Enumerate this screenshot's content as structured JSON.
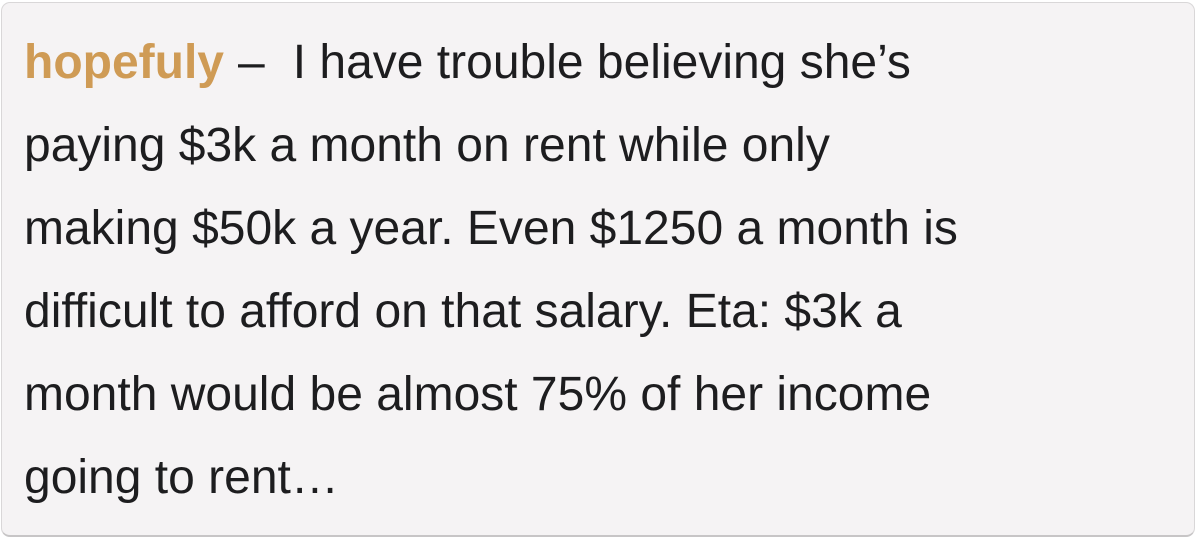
{
  "page": {
    "background_color": "#ffffff"
  },
  "card": {
    "background_color": "#f5f3f4",
    "border_color": "#d9d7d8",
    "accent_color": "#cf9b55",
    "text_color": "#1d1d1f"
  },
  "comment": {
    "username": "hopefuly",
    "separator": "–",
    "body": "I have trouble believing she’s paying $3k a month on rent while only making $50k a year. Even $1250 a month is difficult to afford on that salary. Eta: $3k a month would be almost 75% of her income going to rent…"
  }
}
